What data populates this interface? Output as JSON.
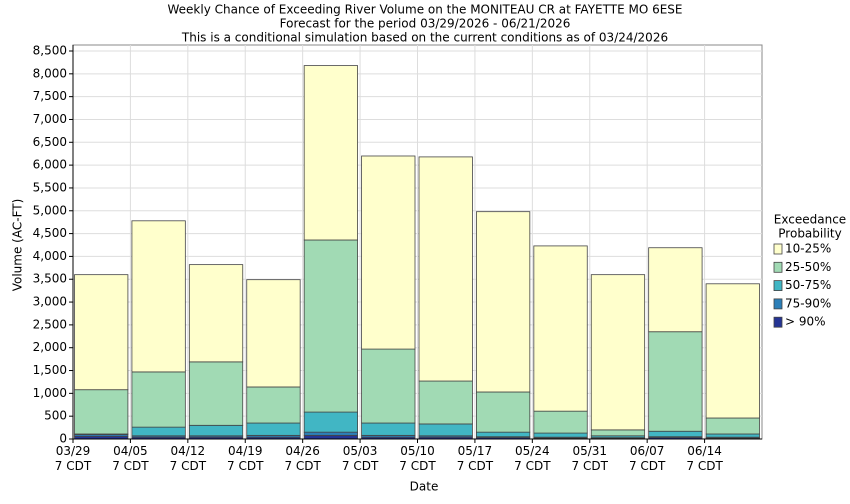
{
  "chart_data": {
    "type": "stacked_bar",
    "title": "Weekly Chance of Exceeding River Volume on the MONITEAU CR at FAYETTE MO 6ESE",
    "subtitle": "Forecast for the period 03/29/2026 - 06/21/2026",
    "note": "This is a conditional simulation based on the current conditions as of 03/24/2026",
    "x_label": "Date",
    "y_label": "Volume (AC-FT)",
    "legend_title": [
      "Exceedance",
      "Probability"
    ],
    "legend_position": "right",
    "grid": true,
    "categories": [
      [
        "03/29",
        "7 CDT"
      ],
      [
        "04/05",
        "7 CDT"
      ],
      [
        "04/12",
        "7 CDT"
      ],
      [
        "04/19",
        "7 CDT"
      ],
      [
        "04/26",
        "7 CDT"
      ],
      [
        "05/03",
        "7 CDT"
      ],
      [
        "05/10",
        "7 CDT"
      ],
      [
        "05/17",
        "7 CDT"
      ],
      [
        "05/24",
        "7 CDT"
      ],
      [
        "05/31",
        "7 CDT"
      ],
      [
        "06/07",
        "7 CDT"
      ],
      [
        "06/14",
        "7 CDT"
      ]
    ],
    "series": [
      {
        "name": "> 90%",
        "color": "#253494",
        "values": [
          60,
          40,
          40,
          40,
          80,
          40,
          40,
          30,
          20,
          15,
          30,
          20
        ]
      },
      {
        "name": "75-90%",
        "color": "#2c7fb8",
        "values": [
          40,
          30,
          30,
          40,
          70,
          40,
          30,
          20,
          20,
          15,
          20,
          20
        ]
      },
      {
        "name": "50-75%",
        "color": "#41b6c4",
        "values": [
          10,
          190,
          230,
          270,
          440,
          270,
          260,
          100,
          90,
          40,
          120,
          70
        ]
      },
      {
        "name": "25-50%",
        "color": "#a1dab4",
        "values": [
          970,
          1210,
          1390,
          790,
          3770,
          1620,
          940,
          880,
          480,
          130,
          2180,
          350
        ]
      },
      {
        "name": "10-25%",
        "color": "#ffffcc",
        "values": [
          2520,
          3310,
          2130,
          2350,
          3820,
          4230,
          4910,
          3950,
          3620,
          3400,
          1840,
          2940
        ]
      }
    ],
    "ylim": [
      0,
      8500
    ],
    "yticks": [
      0,
      500,
      {
        "value": 1000,
        "label": "1,000"
      },
      {
        "value": 1500,
        "label": "1,500"
      },
      {
        "value": 2000,
        "label": "2,000"
      },
      {
        "value": 2500,
        "label": "2,500"
      },
      {
        "value": 3000,
        "label": "3,000"
      },
      {
        "value": 3500,
        "label": "3,500"
      },
      {
        "value": 4000,
        "label": "4,000"
      },
      {
        "value": 4500,
        "label": "4,500"
      },
      {
        "value": 5000,
        "label": "5,000"
      },
      {
        "value": 5500,
        "label": "5,500"
      },
      {
        "value": 6000,
        "label": "6,000"
      },
      {
        "value": 6500,
        "label": "6,500"
      },
      {
        "value": 7000,
        "label": "7,000"
      },
      {
        "value": 7500,
        "label": "7,500"
      },
      {
        "value": 8000,
        "label": "8,000"
      },
      {
        "value": 8500,
        "label": "8,500"
      }
    ]
  }
}
